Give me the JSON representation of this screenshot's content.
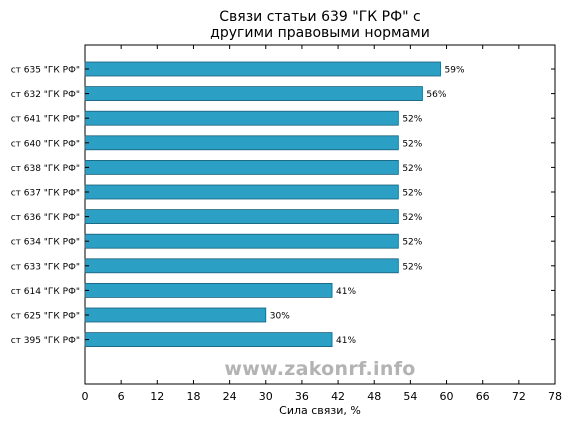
{
  "chart_data": {
    "type": "bar",
    "orientation": "horizontal",
    "title_line1": "Связи статьи 639 \"ГК РФ\" с",
    "title_line2": "другими правовыми нормами",
    "xlabel": "Сила связи, %",
    "ylabel": "",
    "xlim": [
      0,
      78
    ],
    "xticks": [
      0,
      6,
      12,
      18,
      24,
      30,
      36,
      42,
      48,
      54,
      60,
      66,
      72,
      78
    ],
    "categories": [
      "ст 635 \"ГК РФ\"",
      "ст 632 \"ГК РФ\"",
      "ст 641 \"ГК РФ\"",
      "ст 640 \"ГК РФ\"",
      "ст 638 \"ГК РФ\"",
      "ст 637 \"ГК РФ\"",
      "ст 636 \"ГК РФ\"",
      "ст 634 \"ГК РФ\"",
      "ст 633 \"ГК РФ\"",
      "ст 614 \"ГК РФ\"",
      "ст 625 \"ГК РФ\"",
      "ст 395 \"ГК РФ\""
    ],
    "values": [
      59,
      56,
      52,
      52,
      52,
      52,
      52,
      52,
      52,
      41,
      30,
      41
    ],
    "value_labels": [
      "59%",
      "56%",
      "52%",
      "52%",
      "52%",
      "52%",
      "52%",
      "52%",
      "52%",
      "41%",
      "30%",
      "41%"
    ],
    "bar_color": "#2b9fc4",
    "bar_edge_color": "#1a5f78",
    "grid": false,
    "legend": "none"
  },
  "watermark": "www.zakonrf.info"
}
